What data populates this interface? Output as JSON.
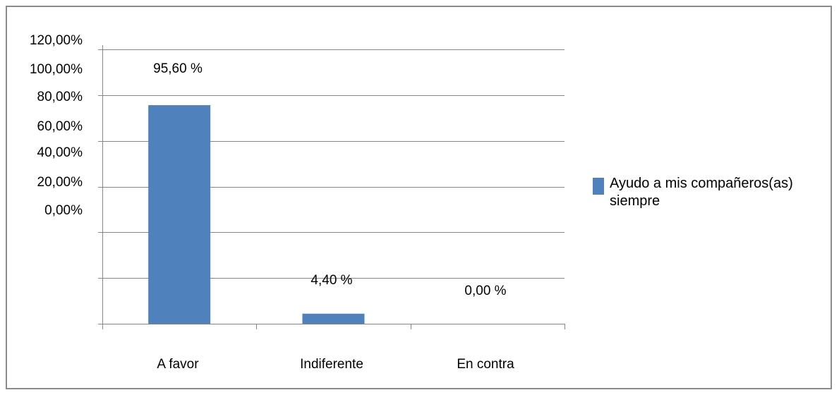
{
  "chart_data": {
    "type": "bar",
    "categories": [
      "A favor",
      "Indiferente",
      "En contra"
    ],
    "series": [
      {
        "name": "Ayudo a mis compañeros(as) siempre",
        "values": [
          95.6,
          4.4,
          0.0
        ]
      }
    ],
    "data_labels": [
      "95,60 %",
      "4,40 %",
      "0,00 %"
    ],
    "y_tick_labels": [
      "120,00%",
      "100,00%",
      "80,00%",
      "60,00%",
      "40,00%",
      "20,00%",
      "0,00%"
    ],
    "ylim": [
      0,
      120
    ],
    "grid": true,
    "legend_position": "right",
    "colors": {
      "bar": "#4f81bd",
      "grid": "#868686",
      "frame": "#8c8c8c"
    }
  }
}
